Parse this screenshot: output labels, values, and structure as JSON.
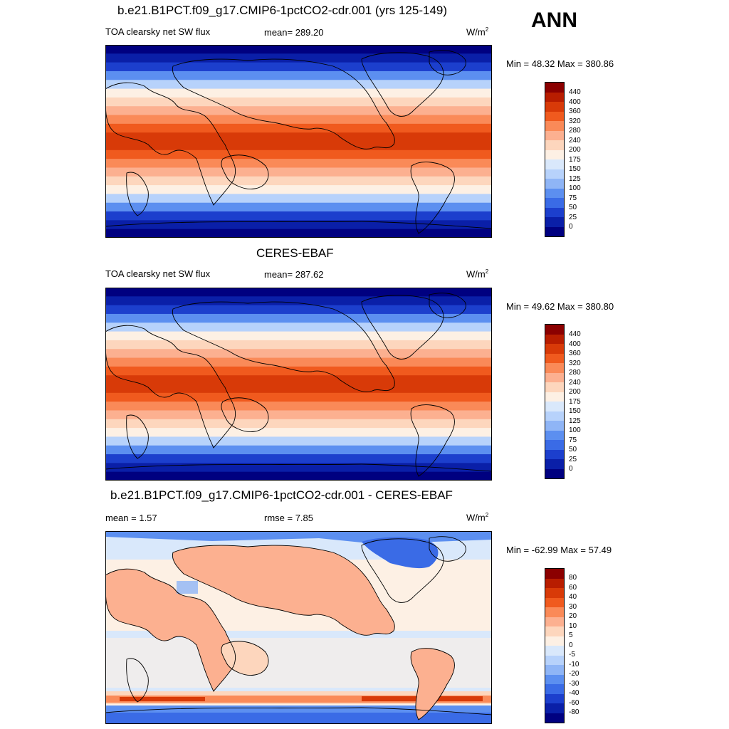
{
  "season": "ANN",
  "panels": [
    {
      "title": "b.e21.B1PCT.f09_g17.CMIP6-1pctCO2-cdr.001 (yrs 125-149)",
      "variable": "TOA clearsky net SW flux",
      "stat": "mean= 289.20",
      "units": "W/m",
      "units_exp": "2",
      "minmax": "Min =  48.32 Max = 380.86",
      "kind": "abs",
      "cbar_labels": [
        "440",
        "400",
        "360",
        "320",
        "280",
        "240",
        "200",
        "175",
        "150",
        "125",
        "100",
        "75",
        "50",
        "25",
        "0"
      ]
    },
    {
      "title": "CERES-EBAF",
      "variable": "TOA clearsky net SW flux",
      "stat": "mean= 287.62",
      "units": "W/m",
      "units_exp": "2",
      "minmax": "Min =  49.62 Max = 380.80",
      "kind": "abs",
      "cbar_labels": [
        "440",
        "400",
        "360",
        "320",
        "280",
        "240",
        "200",
        "175",
        "150",
        "125",
        "100",
        "75",
        "50",
        "25",
        "0"
      ]
    },
    {
      "title": "b.e21.B1PCT.f09_g17.CMIP6-1pctCO2-cdr.001 - CERES-EBAF",
      "stat_mean": "mean =   1.57",
      "stat_rmse": "rmse =   7.85",
      "units": "W/m",
      "units_exp": "2",
      "minmax": "Min = -62.99 Max =  57.49",
      "kind": "diff",
      "cbar_labels": [
        "80",
        "60",
        "40",
        "30",
        "20",
        "10",
        "5",
        "0",
        "-5",
        "-10",
        "-20",
        "-30",
        "-40",
        "-60",
        "-80"
      ]
    }
  ],
  "colors": {
    "palette": [
      "#8b0000",
      "#b81d00",
      "#d83a08",
      "#f05a1e",
      "#fa8a58",
      "#fcb090",
      "#fdd6bd",
      "#fdf0e4",
      "#d9e8fb",
      "#b7d2fb",
      "#8fb5f6",
      "#5c8ff0",
      "#3a6be6",
      "#1c3fcd",
      "#0a1fa8",
      "#000080"
    ]
  }
}
